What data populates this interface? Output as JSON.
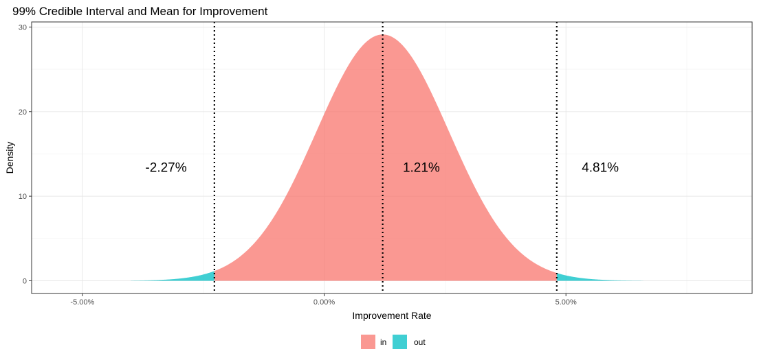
{
  "chart_data": {
    "type": "area",
    "title": "99% Credible Interval and Mean for Improvement",
    "xlabel": "Improvement Rate",
    "ylabel": "Density",
    "xlim": [
      -0.0605,
      0.0885
    ],
    "ylim": [
      -1.5,
      30.6
    ],
    "x_ticks": [
      -0.05,
      0.0,
      0.05
    ],
    "x_tick_labels": [
      "-5.00%",
      "0.00%",
      "5.00%"
    ],
    "y_ticks": [
      0,
      10,
      20,
      30
    ],
    "y_tick_labels": [
      "0",
      "10",
      "20",
      "30"
    ],
    "grid": true,
    "distribution": {
      "mean": 0.0121,
      "sd": 0.0137,
      "x_min": -0.04,
      "x_max": 0.066
    },
    "interval": {
      "lower": -0.0227,
      "upper": 0.0481
    },
    "vlines": [
      -0.0227,
      0.0121,
      0.0481
    ],
    "annotations": [
      {
        "label": "-2.27%",
        "x": -0.0327,
        "y": 13.3
      },
      {
        "label": "1.21%",
        "x": 0.0201,
        "y": 13.3
      },
      {
        "label": "4.81%",
        "x": 0.0571,
        "y": 13.3
      }
    ],
    "series": [
      {
        "name": "in",
        "color": "#F8766D"
      },
      {
        "name": "out",
        "color": "#00BFC4"
      }
    ],
    "legend_position": "bottom"
  }
}
